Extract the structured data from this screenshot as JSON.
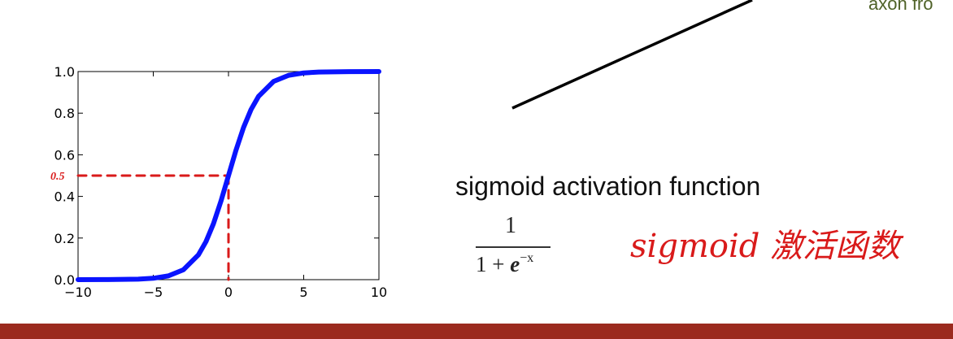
{
  "slide": {
    "corner_text": "axon fro",
    "activation_label": "sigmoid activation function",
    "formula": {
      "numerator": "1",
      "denominator_base": "1 + ",
      "denominator_e": "e",
      "denominator_exp": "−x"
    },
    "handwritten_note": "sigmoid 激活函数",
    "annotation_value": "0.5"
  },
  "colors": {
    "curve": "#0a14ff",
    "annotation": "#d91a1a",
    "corner_text": "#4f6228",
    "bottom_bar": "#9b2a1e"
  },
  "chart_data": {
    "type": "line",
    "title": "",
    "xlabel": "",
    "ylabel": "",
    "xlim": [
      -10,
      10
    ],
    "ylim": [
      0,
      1
    ],
    "x_ticks": [
      -10,
      -5,
      0,
      5,
      10
    ],
    "x_tick_labels": [
      "−10",
      "−5",
      "0",
      "5",
      "10"
    ],
    "y_ticks": [
      0.0,
      0.2,
      0.4,
      0.6,
      0.8,
      1.0
    ],
    "y_tick_labels": [
      "0.0",
      "0.2",
      "0.4",
      "0.6",
      "0.8",
      "1.0"
    ],
    "grid": false,
    "legend": "none",
    "series": [
      {
        "x": [
          -10,
          -8,
          -6,
          -5,
          -4,
          -3,
          -2,
          -1.5,
          -1,
          -0.5,
          0,
          0.5,
          1,
          1.5,
          2,
          3,
          4,
          5,
          6,
          8,
          10
        ],
        "values": [
          4.54e-05,
          0.000335,
          0.00247,
          0.00669,
          0.018,
          0.0474,
          0.1192,
          0.1824,
          0.2689,
          0.3775,
          0.5,
          0.6225,
          0.7311,
          0.8176,
          0.8808,
          0.9526,
          0.982,
          0.9933,
          0.9975,
          0.9997,
          0.99995
        ]
      }
    ],
    "annotations": [
      {
        "type": "dashed-horizontal",
        "from": [
          -10,
          0.5
        ],
        "to": [
          0,
          0.5
        ],
        "label": "0.5"
      },
      {
        "type": "dashed-vertical",
        "from": [
          0,
          0.5
        ],
        "to": [
          0,
          0
        ]
      }
    ]
  }
}
